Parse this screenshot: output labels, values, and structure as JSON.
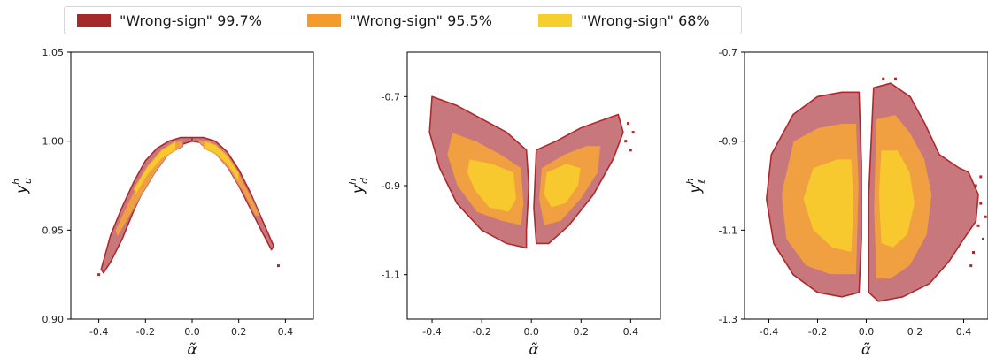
{
  "legend": [
    {
      "label": "\"Wrong-sign\" 99.7%",
      "color": "#a52a2a"
    },
    {
      "label": "\"Wrong-sign\" 95.5%",
      "color": "#f39c2c"
    },
    {
      "label": "\"Wrong-sign\" 68%",
      "color": "#f7cf2c"
    }
  ],
  "colors": {
    "outer_fill": "#c8787c",
    "outer_edge": "#b0282c",
    "mid_fill": "#f0a040",
    "inner_fill": "#f7c92e"
  },
  "chart_data": [
    {
      "type": "area",
      "xlabel": "α̃",
      "ylabel_base": "y",
      "ylabel_sup": "h",
      "ylabel_sub": "u",
      "xlim": [
        -0.52,
        0.52
      ],
      "ylim": [
        0.9,
        1.05
      ],
      "xticks": [
        "-0.4",
        "-0.2",
        "0.0",
        "0.2",
        "0.4"
      ],
      "xtick_values": [
        -0.4,
        -0.2,
        0.0,
        0.2,
        0.4
      ],
      "yticks": [
        "0.90",
        "0.95",
        "1.00",
        "1.05"
      ],
      "ytick_values": [
        0.9,
        0.95,
        1.0,
        1.05
      ],
      "regions": [
        {
          "level": "99.7%",
          "polygons": [
            [
              [
                -0.39,
                0.928
              ],
              [
                -0.35,
                0.947
              ],
              [
                -0.3,
                0.963
              ],
              [
                -0.25,
                0.977
              ],
              [
                -0.2,
                0.989
              ],
              [
                -0.15,
                0.996
              ],
              [
                -0.1,
                1.0
              ],
              [
                -0.05,
                1.002
              ],
              [
                0.0,
                1.002
              ],
              [
                0.0,
                1.0
              ],
              [
                -0.05,
                0.998
              ],
              [
                -0.1,
                0.994
              ],
              [
                -0.15,
                0.986
              ],
              [
                -0.2,
                0.975
              ],
              [
                -0.25,
                0.961
              ],
              [
                -0.3,
                0.945
              ],
              [
                -0.35,
                0.932
              ],
              [
                -0.38,
                0.926
              ]
            ],
            [
              [
                0.0,
                1.002
              ],
              [
                0.05,
                1.002
              ],
              [
                0.1,
                1.0
              ],
              [
                0.15,
                0.994
              ],
              [
                0.2,
                0.984
              ],
              [
                0.25,
                0.971
              ],
              [
                0.3,
                0.956
              ],
              [
                0.35,
                0.941
              ],
              [
                0.34,
                0.939
              ],
              [
                0.3,
                0.949
              ],
              [
                0.25,
                0.962
              ],
              [
                0.2,
                0.975
              ],
              [
                0.15,
                0.986
              ],
              [
                0.1,
                0.994
              ],
              [
                0.05,
                0.999
              ],
              [
                0.0,
                1.0
              ]
            ]
          ]
        },
        {
          "level": "95.5%",
          "polygons": [
            [
              [
                -0.33,
                0.95
              ],
              [
                -0.28,
                0.964
              ],
              [
                -0.22,
                0.979
              ],
              [
                -0.16,
                0.991
              ],
              [
                -0.1,
                0.998
              ],
              [
                -0.04,
                1.001
              ],
              [
                -0.04,
                0.997
              ],
              [
                -0.1,
                0.993
              ],
              [
                -0.16,
                0.982
              ],
              [
                -0.22,
                0.969
              ],
              [
                -0.28,
                0.955
              ],
              [
                -0.32,
                0.946
              ]
            ],
            [
              [
                0.02,
                1.001
              ],
              [
                0.08,
                1.0
              ],
              [
                0.14,
                0.994
              ],
              [
                0.2,
                0.982
              ],
              [
                0.26,
                0.967
              ],
              [
                0.29,
                0.958
              ],
              [
                0.27,
                0.958
              ],
              [
                0.22,
                0.971
              ],
              [
                0.16,
                0.984
              ],
              [
                0.1,
                0.993
              ],
              [
                0.04,
                0.998
              ]
            ]
          ]
        },
        {
          "level": "68%",
          "polygons": [
            [
              [
                -0.25,
                0.973
              ],
              [
                -0.19,
                0.986
              ],
              [
                -0.13,
                0.995
              ],
              [
                -0.07,
                1.0
              ],
              [
                -0.07,
                0.995
              ],
              [
                -0.13,
                0.99
              ],
              [
                -0.19,
                0.981
              ],
              [
                -0.24,
                0.97
              ]
            ],
            [
              [
                0.05,
                1.0
              ],
              [
                0.1,
                0.998
              ],
              [
                0.15,
                0.992
              ],
              [
                0.2,
                0.982
              ],
              [
                0.2,
                0.977
              ],
              [
                0.15,
                0.987
              ],
              [
                0.1,
                0.993
              ],
              [
                0.05,
                0.996
              ]
            ]
          ]
        }
      ],
      "specks": [
        [
          -0.4,
          0.925
        ],
        [
          0.37,
          0.93
        ]
      ]
    },
    {
      "type": "area",
      "xlabel": "α̃",
      "ylabel_base": "y",
      "ylabel_sup": "h",
      "ylabel_sub": "d",
      "xlim": [
        -0.5,
        0.52
      ],
      "ylim": [
        -1.2,
        -0.6
      ],
      "xticks": [
        "-0.4",
        "-0.2",
        "0.0",
        "0.2",
        "0.4"
      ],
      "xtick_values": [
        -0.4,
        -0.2,
        0.0,
        0.2,
        0.4
      ],
      "yticks": [
        "-0.7",
        "-0.9",
        "-1.1"
      ],
      "ytick_values": [
        -0.7,
        -0.9,
        -1.1
      ],
      "regions": [
        {
          "level": "99.7%",
          "polygons": [
            [
              [
                -0.4,
                -0.7
              ],
              [
                -0.3,
                -0.72
              ],
              [
                -0.2,
                -0.75
              ],
              [
                -0.1,
                -0.78
              ],
              [
                -0.02,
                -0.82
              ],
              [
                -0.01,
                -0.9
              ],
              [
                -0.02,
                -1.0
              ],
              [
                -0.02,
                -1.04
              ],
              [
                -0.1,
                -1.03
              ],
              [
                -0.2,
                -1.0
              ],
              [
                -0.3,
                -0.94
              ],
              [
                -0.37,
                -0.86
              ],
              [
                -0.41,
                -0.78
              ]
            ],
            [
              [
                0.02,
                -0.82
              ],
              [
                0.1,
                -0.8
              ],
              [
                0.2,
                -0.77
              ],
              [
                0.3,
                -0.75
              ],
              [
                0.35,
                -0.74
              ],
              [
                0.37,
                -0.78
              ],
              [
                0.33,
                -0.84
              ],
              [
                0.25,
                -0.92
              ],
              [
                0.15,
                -0.99
              ],
              [
                0.07,
                -1.03
              ],
              [
                0.02,
                -1.03
              ],
              [
                0.01,
                -0.95
              ]
            ]
          ]
        },
        {
          "level": "95.5%",
          "polygons": [
            [
              [
                -0.32,
                -0.78
              ],
              [
                -0.22,
                -0.8
              ],
              [
                -0.12,
                -0.83
              ],
              [
                -0.04,
                -0.86
              ],
              [
                -0.03,
                -0.94
              ],
              [
                -0.04,
                -0.99
              ],
              [
                -0.12,
                -0.98
              ],
              [
                -0.22,
                -0.96
              ],
              [
                -0.3,
                -0.9
              ],
              [
                -0.34,
                -0.83
              ]
            ],
            [
              [
                0.04,
                -0.86
              ],
              [
                0.13,
                -0.83
              ],
              [
                0.22,
                -0.81
              ],
              [
                0.28,
                -0.81
              ],
              [
                0.27,
                -0.87
              ],
              [
                0.2,
                -0.93
              ],
              [
                0.12,
                -0.98
              ],
              [
                0.05,
                -0.99
              ],
              [
                0.03,
                -0.93
              ]
            ]
          ]
        },
        {
          "level": "68%",
          "polygons": [
            [
              [
                -0.25,
                -0.84
              ],
              [
                -0.16,
                -0.85
              ],
              [
                -0.07,
                -0.87
              ],
              [
                -0.06,
                -0.93
              ],
              [
                -0.09,
                -0.96
              ],
              [
                -0.17,
                -0.95
              ],
              [
                -0.23,
                -0.91
              ],
              [
                -0.26,
                -0.87
              ]
            ],
            [
              [
                0.06,
                -0.87
              ],
              [
                0.14,
                -0.85
              ],
              [
                0.2,
                -0.86
              ],
              [
                0.19,
                -0.9
              ],
              [
                0.14,
                -0.94
              ],
              [
                0.08,
                -0.95
              ],
              [
                0.05,
                -0.92
              ]
            ]
          ]
        }
      ],
      "specks": [
        [
          0.38,
          -0.8
        ],
        [
          0.39,
          -0.76
        ],
        [
          0.4,
          -0.82
        ],
        [
          0.41,
          -0.78
        ]
      ]
    },
    {
      "type": "area",
      "xlabel": "α̃",
      "ylabel_base": "y",
      "ylabel_sup": "h",
      "ylabel_sub": "ℓ",
      "xlim": [
        -0.5,
        0.5
      ],
      "ylim": [
        -1.3,
        -0.7
      ],
      "xticks": [
        "-0.4",
        "-0.2",
        "0.0",
        "0.2",
        "0.4"
      ],
      "xtick_values": [
        -0.4,
        -0.2,
        0.0,
        0.2,
        0.4
      ],
      "yticks": [
        "-0.7",
        "-0.9",
        "-1.1",
        "-1.3"
      ],
      "ytick_values": [
        -0.7,
        -0.9,
        -1.1,
        -1.3
      ],
      "regions": [
        {
          "level": "99.7%",
          "polygons": [
            [
              [
                -0.3,
                -0.84
              ],
              [
                -0.2,
                -0.8
              ],
              [
                -0.1,
                -0.79
              ],
              [
                -0.03,
                -0.79
              ],
              [
                -0.02,
                -0.95
              ],
              [
                -0.02,
                -1.12
              ],
              [
                -0.03,
                -1.24
              ],
              [
                -0.1,
                -1.25
              ],
              [
                -0.2,
                -1.24
              ],
              [
                -0.3,
                -1.2
              ],
              [
                -0.38,
                -1.13
              ],
              [
                -0.41,
                -1.03
              ],
              [
                -0.39,
                -0.93
              ]
            ],
            [
              [
                0.03,
                -0.78
              ],
              [
                0.1,
                -0.77
              ],
              [
                0.18,
                -0.8
              ],
              [
                0.24,
                -0.86
              ],
              [
                0.3,
                -0.93
              ],
              [
                0.38,
                -0.96
              ],
              [
                0.42,
                -0.97
              ],
              [
                0.46,
                -1.02
              ],
              [
                0.45,
                -1.08
              ],
              [
                0.4,
                -1.12
              ],
              [
                0.34,
                -1.17
              ],
              [
                0.26,
                -1.22
              ],
              [
                0.15,
                -1.25
              ],
              [
                0.05,
                -1.26
              ],
              [
                0.01,
                -1.24
              ],
              [
                0.01,
                -1.02
              ]
            ]
          ]
        },
        {
          "level": "95.5%",
          "polygons": [
            [
              [
                -0.3,
                -0.9
              ],
              [
                -0.2,
                -0.87
              ],
              [
                -0.1,
                -0.86
              ],
              [
                -0.04,
                -0.86
              ],
              [
                -0.03,
                -1.0
              ],
              [
                -0.04,
                -1.2
              ],
              [
                -0.15,
                -1.2
              ],
              [
                -0.25,
                -1.18
              ],
              [
                -0.33,
                -1.12
              ],
              [
                -0.35,
                -1.02
              ]
            ],
            [
              [
                0.04,
                -0.85
              ],
              [
                0.12,
                -0.84
              ],
              [
                0.18,
                -0.88
              ],
              [
                0.24,
                -0.94
              ],
              [
                0.27,
                -1.02
              ],
              [
                0.25,
                -1.11
              ],
              [
                0.18,
                -1.18
              ],
              [
                0.1,
                -1.21
              ],
              [
                0.04,
                -1.21
              ],
              [
                0.03,
                -1.05
              ]
            ]
          ]
        },
        {
          "level": "68%",
          "polygons": [
            [
              [
                -0.22,
                -0.96
              ],
              [
                -0.12,
                -0.94
              ],
              [
                -0.06,
                -0.94
              ],
              [
                -0.05,
                -1.04
              ],
              [
                -0.06,
                -1.15
              ],
              [
                -0.14,
                -1.14
              ],
              [
                -0.22,
                -1.1
              ],
              [
                -0.26,
                -1.03
              ]
            ],
            [
              [
                0.06,
                -0.92
              ],
              [
                0.13,
                -0.92
              ],
              [
                0.18,
                -0.97
              ],
              [
                0.2,
                -1.04
              ],
              [
                0.17,
                -1.11
              ],
              [
                0.11,
                -1.14
              ],
              [
                0.06,
                -1.13
              ],
              [
                0.05,
                -1.02
              ]
            ]
          ]
        }
      ],
      "specks": [
        [
          0.45,
          -1.0
        ],
        [
          0.47,
          -1.04
        ],
        [
          0.46,
          -1.09
        ],
        [
          0.48,
          -1.12
        ],
        [
          0.44,
          -1.15
        ],
        [
          0.47,
          -0.98
        ],
        [
          0.43,
          -1.18
        ],
        [
          0.49,
          -1.07
        ],
        [
          0.07,
          -0.76
        ],
        [
          0.12,
          -0.76
        ]
      ]
    }
  ]
}
